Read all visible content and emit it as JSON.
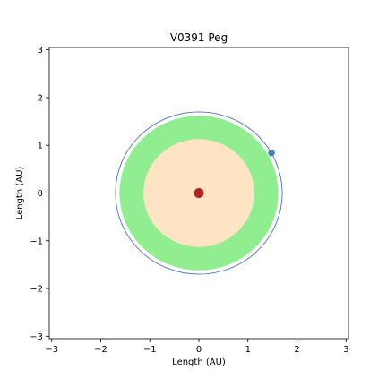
{
  "chart_data": {
    "type": "scatter",
    "title": "V0391 Peg",
    "xlabel": "Length (AU)",
    "ylabel": "Length (AU)",
    "xlim": [
      -3.05,
      3.05
    ],
    "ylim": [
      -3.05,
      3.05
    ],
    "x_ticks": [
      -3,
      -2,
      -1,
      0,
      1,
      2,
      3
    ],
    "y_ticks": [
      -3,
      -2,
      -1,
      0,
      1,
      2,
      3
    ],
    "x_tick_labels": [
      "−3",
      "−2",
      "−1",
      "0",
      "1",
      "2",
      "3"
    ],
    "y_tick_labels": [
      "−3",
      "−2",
      "−1",
      "0",
      "1",
      "2",
      "3"
    ],
    "grid": false,
    "regions": [
      {
        "shape": "disk",
        "center": [
          0,
          0
        ],
        "radius": 1.62,
        "color": "#90ee90"
      },
      {
        "shape": "disk",
        "center": [
          0,
          0
        ],
        "radius": 1.13,
        "color": "#ffe4c4"
      }
    ],
    "orbits": [
      {
        "shape": "circle",
        "center": [
          0,
          0
        ],
        "radius": 1.7,
        "color": "#4a72b0"
      }
    ],
    "points": [
      {
        "x": 0.0,
        "y": 0.0,
        "color": "#b22222",
        "marker": "star"
      },
      {
        "x": 1.48,
        "y": 0.84,
        "color": "#4682b4",
        "marker": "planet"
      }
    ]
  }
}
